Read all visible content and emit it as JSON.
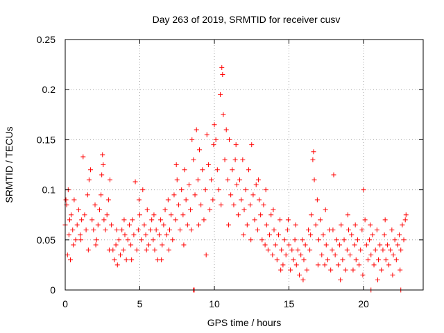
{
  "chart_data": {
    "type": "scatter",
    "title": "Day 263 of 2019, SRMTID for receiver cusv",
    "xlabel": "GPS time / hours",
    "ylabel": "SRMTID / TECUs",
    "xlim": [
      0,
      24
    ],
    "ylim": [
      0,
      0.25
    ],
    "grid": true,
    "marker": "plus",
    "color": "#ff0000",
    "x_ticks": [
      0,
      5,
      10,
      15,
      20
    ],
    "x_tick_labels": [
      "0",
      "5",
      "10",
      "15",
      "20"
    ],
    "y_ticks": [
      0,
      0.05,
      0.1,
      0.15,
      0.2,
      0.25
    ],
    "y_tick_labels": [
      "0",
      "0.05",
      "0.1",
      "0.15",
      "0.2",
      "0.25"
    ],
    "series": [
      {
        "name": "SRMTID",
        "points": [
          [
            0.0,
            0.065
          ],
          [
            0.1,
            0.085
          ],
          [
            0.15,
            0.035
          ],
          [
            0.2,
            0.1
          ],
          [
            0.25,
            0.055
          ],
          [
            0.3,
            0.07
          ],
          [
            0.35,
            0.03
          ],
          [
            0.4,
            0.075
          ],
          [
            0.5,
            0.06
          ],
          [
            0.6,
            0.09
          ],
          [
            0.7,
            0.05
          ],
          [
            0.8,
            0.065
          ],
          [
            0.9,
            0.08
          ],
          [
            1.0,
            0.055
          ],
          [
            1.1,
            0.07
          ],
          [
            1.2,
            0.133
          ],
          [
            1.3,
            0.075
          ],
          [
            1.4,
            0.06
          ],
          [
            1.5,
            0.095
          ],
          [
            1.6,
            0.11
          ],
          [
            1.7,
            0.12
          ],
          [
            1.8,
            0.07
          ],
          [
            1.9,
            0.06
          ],
          [
            2.0,
            0.085
          ],
          [
            2.1,
            0.05
          ],
          [
            2.2,
            0.065
          ],
          [
            2.3,
            0.08
          ],
          [
            2.4,
            0.095
          ],
          [
            2.5,
            0.135
          ],
          [
            2.55,
            0.125
          ],
          [
            2.6,
            0.07
          ],
          [
            2.7,
            0.06
          ],
          [
            2.8,
            0.075
          ],
          [
            2.9,
            0.09
          ],
          [
            3.0,
            0.11
          ],
          [
            3.1,
            0.065
          ],
          [
            3.2,
            0.04
          ],
          [
            3.3,
            0.03
          ],
          [
            3.4,
            0.045
          ],
          [
            3.5,
            0.025
          ],
          [
            3.6,
            0.05
          ],
          [
            3.7,
            0.035
          ],
          [
            3.8,
            0.06
          ],
          [
            3.9,
            0.04
          ],
          [
            4.0,
            0.055
          ],
          [
            4.1,
            0.03
          ],
          [
            4.2,
            0.05
          ],
          [
            4.3,
            0.065
          ],
          [
            4.4,
            0.045
          ],
          [
            4.5,
            0.07
          ],
          [
            4.6,
            0.055
          ],
          [
            4.7,
            0.108
          ],
          [
            4.8,
            0.04
          ],
          [
            4.9,
            0.06
          ],
          [
            5.0,
            0.075
          ],
          [
            5.1,
            0.05
          ],
          [
            5.2,
            0.1
          ],
          [
            5.3,
            0.065
          ],
          [
            5.4,
            0.055
          ],
          [
            5.5,
            0.08
          ],
          [
            5.6,
            0.045
          ],
          [
            5.7,
            0.06
          ],
          [
            5.8,
            0.07
          ],
          [
            5.9,
            0.05
          ],
          [
            6.0,
            0.04
          ],
          [
            6.1,
            0.06
          ],
          [
            6.2,
            0.03
          ],
          [
            6.3,
            0.055
          ],
          [
            6.4,
            0.07
          ],
          [
            6.5,
            0.045
          ],
          [
            6.6,
            0.065
          ],
          [
            6.7,
            0.08
          ],
          [
            6.8,
            0.055
          ],
          [
            6.9,
            0.09
          ],
          [
            7.0,
            0.06
          ],
          [
            7.1,
            0.075
          ],
          [
            7.2,
            0.05
          ],
          [
            7.3,
            0.095
          ],
          [
            7.4,
            0.07
          ],
          [
            7.5,
            0.11
          ],
          [
            7.6,
            0.085
          ],
          [
            7.7,
            0.06
          ],
          [
            7.8,
            0.1
          ],
          [
            7.9,
            0.075
          ],
          [
            8.0,
            0.12
          ],
          [
            8.1,
            0.09
          ],
          [
            8.2,
            0.065
          ],
          [
            8.3,
            0.105
          ],
          [
            8.4,
            0.08
          ],
          [
            8.5,
            0.15
          ],
          [
            8.6,
            0.13
          ],
          [
            8.7,
            0.095
          ],
          [
            8.8,
            0.16
          ],
          [
            8.9,
            0.11
          ],
          [
            9.0,
            0.14
          ],
          [
            9.1,
            0.085
          ],
          [
            9.2,
            0.12
          ],
          [
            9.3,
            0.07
          ],
          [
            9.4,
            0.1
          ],
          [
            9.5,
            0.155
          ],
          [
            9.6,
            0.125
          ],
          [
            9.7,
            0.08
          ],
          [
            9.8,
            0.11
          ],
          [
            9.9,
            0.09
          ],
          [
            10.0,
            0.165
          ],
          [
            10.1,
            0.15
          ],
          [
            10.2,
            0.12
          ],
          [
            10.3,
            0.1
          ],
          [
            10.4,
            0.195
          ],
          [
            10.5,
            0.222
          ],
          [
            10.55,
            0.215
          ],
          [
            10.6,
            0.175
          ],
          [
            10.7,
            0.13
          ],
          [
            10.8,
            0.16
          ],
          [
            10.9,
            0.11
          ],
          [
            11.0,
            0.15
          ],
          [
            11.1,
            0.095
          ],
          [
            11.2,
            0.12
          ],
          [
            11.3,
            0.085
          ],
          [
            11.4,
            0.13
          ],
          [
            11.5,
            0.105
          ],
          [
            11.6,
            0.075
          ],
          [
            11.7,
            0.11
          ],
          [
            11.8,
            0.09
          ],
          [
            11.9,
            0.13
          ],
          [
            12.0,
            0.08
          ],
          [
            12.1,
            0.1
          ],
          [
            12.2,
            0.065
          ],
          [
            12.3,
            0.12
          ],
          [
            12.4,
            0.085
          ],
          [
            12.5,
            0.145
          ],
          [
            12.6,
            0.095
          ],
          [
            12.7,
            0.07
          ],
          [
            12.8,
            0.105
          ],
          [
            12.9,
            0.06
          ],
          [
            13.0,
            0.09
          ],
          [
            13.1,
            0.075
          ],
          [
            13.2,
            0.05
          ],
          [
            13.3,
            0.085
          ],
          [
            13.4,
            0.045
          ],
          [
            13.5,
            0.065
          ],
          [
            13.6,
            0.04
          ],
          [
            13.7,
            0.055
          ],
          [
            13.8,
            0.075
          ],
          [
            13.9,
            0.035
          ],
          [
            14.0,
            0.06
          ],
          [
            14.1,
            0.045
          ],
          [
            14.2,
            0.03
          ],
          [
            14.3,
            0.055
          ],
          [
            14.4,
            0.07
          ],
          [
            14.5,
            0.04
          ],
          [
            14.6,
            0.025
          ],
          [
            14.7,
            0.05
          ],
          [
            14.8,
            0.035
          ],
          [
            14.9,
            0.06
          ],
          [
            15.0,
            0.045
          ],
          [
            15.1,
            0.02
          ],
          [
            15.2,
            0.04
          ],
          [
            15.3,
            0.03
          ],
          [
            15.4,
            0.05
          ],
          [
            15.5,
            0.025
          ],
          [
            15.6,
            0.04
          ],
          [
            15.7,
            0.015
          ],
          [
            15.8,
            0.035
          ],
          [
            15.9,
            0.05
          ],
          [
            16.0,
            0.03
          ],
          [
            16.1,
            0.045
          ],
          [
            16.2,
            0.02
          ],
          [
            16.3,
            0.06
          ],
          [
            16.4,
            0.04
          ],
          [
            16.5,
            0.075
          ],
          [
            16.6,
            0.13
          ],
          [
            16.65,
            0.138
          ],
          [
            16.7,
            0.11
          ],
          [
            16.8,
            0.065
          ],
          [
            16.9,
            0.09
          ],
          [
            17.0,
            0.05
          ],
          [
            17.1,
            0.07
          ],
          [
            17.2,
            0.035
          ],
          [
            17.3,
            0.055
          ],
          [
            17.4,
            0.025
          ],
          [
            17.5,
            0.045
          ],
          [
            17.6,
            0.03
          ],
          [
            17.7,
            0.06
          ],
          [
            17.8,
            0.02
          ],
          [
            17.9,
            0.04
          ],
          [
            18.0,
            0.115
          ],
          [
            18.1,
            0.035
          ],
          [
            18.2,
            0.05
          ],
          [
            18.3,
            0.025
          ],
          [
            18.4,
            0.045
          ],
          [
            18.5,
            0.065
          ],
          [
            18.6,
            0.03
          ],
          [
            18.7,
            0.05
          ],
          [
            18.8,
            0.02
          ],
          [
            18.9,
            0.04
          ],
          [
            19.0,
            0.06
          ],
          [
            19.1,
            0.035
          ],
          [
            19.2,
            0.055
          ],
          [
            19.3,
            0.02
          ],
          [
            19.4,
            0.045
          ],
          [
            19.5,
            0.03
          ],
          [
            19.6,
            0.05
          ],
          [
            19.7,
            0.025
          ],
          [
            19.8,
            0.04
          ],
          [
            19.9,
            0.06
          ],
          [
            20.0,
            0.1
          ],
          [
            20.1,
            0.07
          ],
          [
            20.2,
            0.045
          ],
          [
            20.3,
            0.03
          ],
          [
            20.4,
            0.05
          ],
          [
            20.5,
            0.035
          ],
          [
            20.6,
            0.055
          ],
          [
            20.7,
            0.025
          ],
          [
            20.8,
            0.04
          ],
          [
            20.9,
            0.06
          ],
          [
            21.0,
            0.03
          ],
          [
            21.1,
            0.045
          ],
          [
            21.2,
            0.02
          ],
          [
            21.3,
            0.04
          ],
          [
            21.4,
            0.055
          ],
          [
            21.5,
            0.03
          ],
          [
            21.6,
            0.045
          ],
          [
            21.7,
            0.025
          ],
          [
            21.8,
            0.04
          ],
          [
            21.9,
            0.06
          ],
          [
            22.0,
            0.035
          ],
          [
            22.1,
            0.05
          ],
          [
            22.2,
            0.03
          ],
          [
            22.3,
            0.045
          ],
          [
            22.4,
            0.055
          ],
          [
            22.5,
            0.04
          ],
          [
            22.6,
            0.065
          ],
          [
            22.7,
            0.05
          ],
          [
            22.8,
            0.07
          ],
          [
            22.85,
            0.075
          ],
          [
            0.05,
            0.09
          ],
          [
            0.55,
            0.045
          ],
          [
            1.05,
            0.05
          ],
          [
            1.55,
            0.04
          ],
          [
            2.05,
            0.045
          ],
          [
            2.45,
            0.115
          ],
          [
            2.95,
            0.04
          ],
          [
            3.45,
            0.06
          ],
          [
            3.95,
            0.07
          ],
          [
            4.45,
            0.03
          ],
          [
            4.95,
            0.09
          ],
          [
            5.45,
            0.04
          ],
          [
            5.95,
            0.075
          ],
          [
            6.45,
            0.03
          ],
          [
            6.95,
            0.04
          ],
          [
            7.45,
            0.125
          ],
          [
            7.95,
            0.045
          ],
          [
            8.45,
            0.06
          ],
          [
            8.95,
            0.065
          ],
          [
            9.45,
            0.035
          ],
          [
            9.95,
            0.145
          ],
          [
            10.45,
            0.085
          ],
          [
            10.95,
            0.065
          ],
          [
            11.45,
            0.145
          ],
          [
            11.95,
            0.055
          ],
          [
            12.45,
            0.05
          ],
          [
            12.95,
            0.11
          ],
          [
            13.45,
            0.1
          ],
          [
            13.95,
            0.08
          ],
          [
            14.45,
            0.02
          ],
          [
            14.95,
            0.07
          ],
          [
            15.45,
            0.065
          ],
          [
            15.95,
            0.01
          ],
          [
            16.45,
            0.055
          ],
          [
            16.95,
            0.025
          ],
          [
            17.45,
            0.08
          ],
          [
            17.95,
            0.06
          ],
          [
            18.45,
            0.01
          ],
          [
            18.95,
            0.075
          ],
          [
            19.45,
            0.065
          ],
          [
            19.95,
            0.015
          ],
          [
            20.45,
            0.065
          ],
          [
            20.95,
            0.01
          ],
          [
            21.45,
            0.07
          ],
          [
            21.95,
            0.015
          ],
          [
            22.45,
            0.02
          ],
          [
            8.6,
            0.0
          ],
          [
            8.65,
            0.0
          ],
          [
            20.5,
            0.0
          ],
          [
            22.5,
            0.0
          ]
        ]
      }
    ]
  }
}
